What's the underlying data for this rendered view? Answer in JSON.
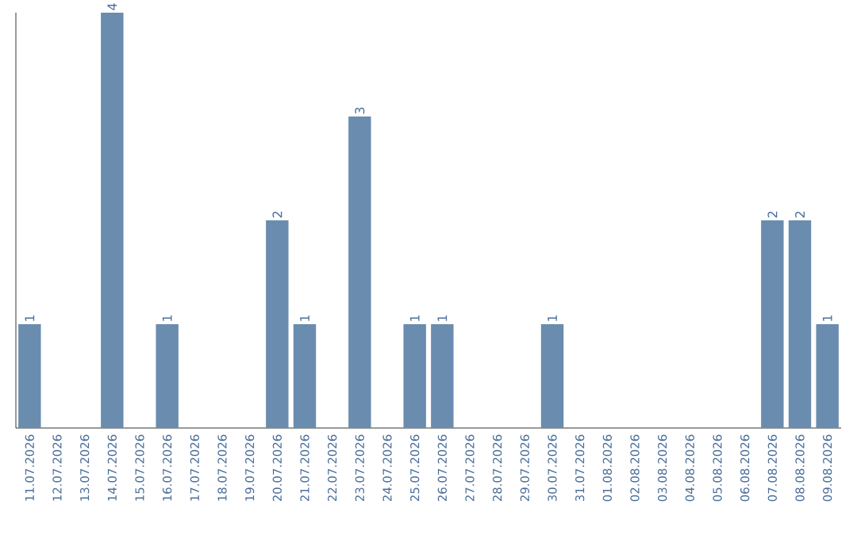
{
  "chart_data": {
    "type": "bar",
    "categories": [
      "11.07.2026",
      "12.07.2026",
      "13.07.2026",
      "14.07.2026",
      "15.07.2026",
      "16.07.2026",
      "17.07.2026",
      "18.07.2026",
      "19.07.2026",
      "20.07.2026",
      "21.07.2026",
      "22.07.2026",
      "23.07.2026",
      "24.07.2026",
      "25.07.2026",
      "26.07.2026",
      "27.07.2026",
      "28.07.2026",
      "29.07.2026",
      "30.07.2026",
      "31.07.2026",
      "01.08.2026",
      "02.08.2026",
      "03.08.2026",
      "04.08.2026",
      "05.08.2026",
      "06.08.2026",
      "07.08.2026",
      "08.08.2026",
      "09.08.2026"
    ],
    "values": [
      1,
      0,
      0,
      4,
      0,
      1,
      0,
      0,
      0,
      2,
      1,
      0,
      3,
      0,
      1,
      1,
      0,
      0,
      0,
      1,
      0,
      0,
      0,
      0,
      0,
      0,
      0,
      2,
      2,
      1
    ],
    "value_labels": [
      "1",
      null,
      null,
      "4",
      null,
      "1",
      null,
      null,
      null,
      "2",
      "1",
      null,
      "3",
      null,
      "1",
      "1",
      null,
      null,
      null,
      "1",
      null,
      null,
      null,
      null,
      null,
      null,
      null,
      "2",
      "2",
      "1"
    ],
    "color": "#6a8caf"
  }
}
